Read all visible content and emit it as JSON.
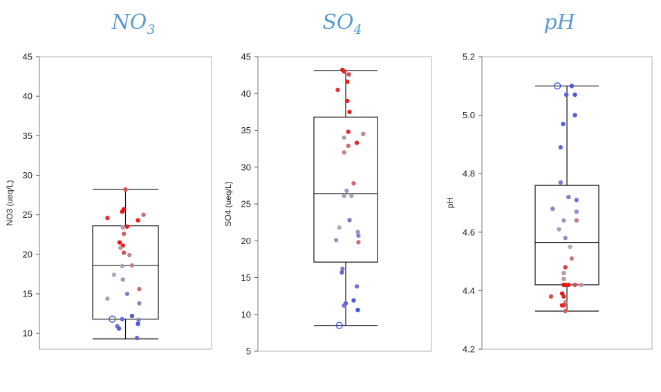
{
  "chart_data": [
    {
      "type": "box",
      "title": "NO3",
      "title_main": "NO",
      "title_sub": "3",
      "ylabel": "NO3 (ueq/L)",
      "ylim": [
        8,
        45
      ],
      "yticks": [
        10,
        15,
        20,
        25,
        30,
        35,
        40,
        45
      ],
      "tick_labels": [
        "10",
        "15",
        "20",
        "25",
        "30",
        "35",
        "40",
        "45"
      ],
      "box": {
        "whisker_low": 9.3,
        "q1": 11.8,
        "median": 18.6,
        "q3": 23.6,
        "whisker_high": 28.2
      },
      "points": [
        {
          "y": 28.2,
          "j": 0.0,
          "c": 0.78
        },
        {
          "y": 25.7,
          "j": -0.05,
          "c": 1.0
        },
        {
          "y": 25.4,
          "j": -0.1,
          "c": 1.0
        },
        {
          "y": 25.0,
          "j": 0.55,
          "c": 0.7
        },
        {
          "y": 24.6,
          "j": -0.55,
          "c": 0.88
        },
        {
          "y": 24.3,
          "j": 0.38,
          "c": 0.95
        },
        {
          "y": 23.5,
          "j": 0.05,
          "c": 0.95
        },
        {
          "y": 23.4,
          "j": -0.08,
          "c": 0.55
        },
        {
          "y": 22.6,
          "j": -0.05,
          "c": 0.75
        },
        {
          "y": 21.5,
          "j": -0.18,
          "c": 1.0
        },
        {
          "y": 21.1,
          "j": -0.08,
          "c": 0.95
        },
        {
          "y": 20.8,
          "j": -0.15,
          "c": 0.55
        },
        {
          "y": 20.2,
          "j": -0.05,
          "c": 0.8
        },
        {
          "y": 19.9,
          "j": 0.12,
          "c": 0.62
        },
        {
          "y": 18.6,
          "j": 0.2,
          "c": 0.62
        },
        {
          "y": 18.5,
          "j": -0.1,
          "c": 0.45
        },
        {
          "y": 17.4,
          "j": -0.35,
          "c": 0.5
        },
        {
          "y": 16.8,
          "j": -0.08,
          "c": 0.4
        },
        {
          "y": 15.6,
          "j": 0.42,
          "c": 0.7
        },
        {
          "y": 15.0,
          "j": 0.05,
          "c": 0.3
        },
        {
          "y": 14.4,
          "j": -0.55,
          "c": 0.45
        },
        {
          "y": 13.8,
          "j": 0.42,
          "c": 0.32
        },
        {
          "y": 12.2,
          "j": 0.2,
          "c": 0.08
        },
        {
          "y": 11.8,
          "j": -0.1,
          "c": 0.15
        },
        {
          "y": 11.7,
          "j": 0.4,
          "c": 0.3
        },
        {
          "y": 11.2,
          "j": 0.38,
          "c": 0.05
        },
        {
          "y": 10.9,
          "j": -0.25,
          "c": 0.2
        },
        {
          "y": 10.6,
          "j": -0.2,
          "c": 0.1
        },
        {
          "y": 9.4,
          "j": 0.35,
          "c": 0.15
        }
      ],
      "open_points": [
        {
          "y": 11.8,
          "j": -0.4
        }
      ]
    },
    {
      "type": "box",
      "title": "SO4",
      "title_main": "SO",
      "title_sub": "4",
      "ylabel": "SO4 (ueq/L)",
      "ylim": [
        5,
        45
      ],
      "yticks": [
        5,
        10,
        15,
        20,
        25,
        30,
        35,
        40,
        45
      ],
      "tick_labels": [
        "5",
        "10",
        "15",
        "20",
        "25",
        "30",
        "35",
        "40",
        "45"
      ],
      "box": {
        "whisker_low": 8.5,
        "q1": 17.1,
        "median": 26.4,
        "q3": 36.8,
        "whisker_high": 43.1
      },
      "points": [
        {
          "y": 43.2,
          "j": -0.1,
          "c": 1.0
        },
        {
          "y": 43.0,
          "j": -0.05,
          "c": 0.95
        },
        {
          "y": 42.6,
          "j": 0.1,
          "c": 0.8
        },
        {
          "y": 41.6,
          "j": 0.05,
          "c": 0.95
        },
        {
          "y": 40.5,
          "j": -0.25,
          "c": 0.88
        },
        {
          "y": 39.0,
          "j": 0.05,
          "c": 0.95
        },
        {
          "y": 37.5,
          "j": 0.12,
          "c": 0.95
        },
        {
          "y": 34.8,
          "j": 0.08,
          "c": 0.9
        },
        {
          "y": 34.5,
          "j": 0.55,
          "c": 0.62
        },
        {
          "y": 34.0,
          "j": -0.05,
          "c": 0.45
        },
        {
          "y": 33.3,
          "j": 0.35,
          "c": 0.92
        },
        {
          "y": 32.9,
          "j": 0.08,
          "c": 0.7
        },
        {
          "y": 32.0,
          "j": -0.05,
          "c": 0.62
        },
        {
          "y": 27.8,
          "j": 0.25,
          "c": 0.72
        },
        {
          "y": 26.8,
          "j": 0.03,
          "c": 0.4
        },
        {
          "y": 26.1,
          "j": 0.18,
          "c": 0.45
        },
        {
          "y": 26.1,
          "j": -0.05,
          "c": 0.45
        },
        {
          "y": 22.8,
          "j": 0.12,
          "c": 0.25
        },
        {
          "y": 21.8,
          "j": -0.2,
          "c": 0.5
        },
        {
          "y": 21.2,
          "j": 0.38,
          "c": 0.4
        },
        {
          "y": 20.7,
          "j": 0.4,
          "c": 0.3
        },
        {
          "y": 20.1,
          "j": -0.3,
          "c": 0.4
        },
        {
          "y": 19.8,
          "j": 0.4,
          "c": 0.7
        },
        {
          "y": 16.2,
          "j": -0.1,
          "c": 0.25
        },
        {
          "y": 15.7,
          "j": -0.12,
          "c": 0.15
        },
        {
          "y": 13.8,
          "j": 0.35,
          "c": 0.2
        },
        {
          "y": 11.9,
          "j": 0.25,
          "c": 0.08
        },
        {
          "y": 11.5,
          "j": 0.0,
          "c": 0.1
        },
        {
          "y": 11.2,
          "j": -0.05,
          "c": 0.2
        },
        {
          "y": 10.6,
          "j": 0.38,
          "c": 0.05
        }
      ],
      "open_points": [
        {
          "y": 8.5,
          "j": -0.2
        }
      ]
    },
    {
      "type": "box",
      "title": "pH",
      "title_main": "pH",
      "title_sub": "",
      "ylabel": "pH",
      "ylim": [
        4.2,
        5.2
      ],
      "yticks": [
        4.2,
        4.4,
        4.6,
        4.8,
        5.0,
        5.2
      ],
      "tick_labels": [
        "4.2",
        "4.4",
        "4.6",
        "4.8",
        "5.0",
        "5.2"
      ],
      "box": {
        "whisker_low": 4.33,
        "q1": 4.42,
        "median": 4.565,
        "q3": 4.76,
        "whisker_high": 5.1
      },
      "points": [
        {
          "y": 5.1,
          "j": 0.15,
          "c": 0.05
        },
        {
          "y": 5.07,
          "j": -0.02,
          "c": 0.1
        },
        {
          "y": 5.07,
          "j": 0.25,
          "c": 0.05
        },
        {
          "y": 5.0,
          "j": 0.25,
          "c": 0.1
        },
        {
          "y": 4.97,
          "j": -0.12,
          "c": 0.1
        },
        {
          "y": 4.89,
          "j": -0.2,
          "c": 0.15
        },
        {
          "y": 4.77,
          "j": -0.2,
          "c": 0.25
        },
        {
          "y": 4.72,
          "j": 0.05,
          "c": 0.25
        },
        {
          "y": 4.71,
          "j": 0.3,
          "c": 0.2
        },
        {
          "y": 4.68,
          "j": -0.45,
          "c": 0.3
        },
        {
          "y": 4.67,
          "j": 0.3,
          "c": 0.35
        },
        {
          "y": 4.64,
          "j": -0.1,
          "c": 0.4
        },
        {
          "y": 4.64,
          "j": 0.3,
          "c": 0.65
        },
        {
          "y": 4.61,
          "j": -0.25,
          "c": 0.45
        },
        {
          "y": 4.58,
          "j": -0.05,
          "c": 0.35
        },
        {
          "y": 4.55,
          "j": 0.1,
          "c": 0.5
        },
        {
          "y": 4.51,
          "j": 0.15,
          "c": 0.65
        },
        {
          "y": 4.48,
          "j": -0.05,
          "c": 0.85
        },
        {
          "y": 4.46,
          "j": -0.1,
          "c": 0.55
        },
        {
          "y": 4.44,
          "j": -0.1,
          "c": 0.55
        },
        {
          "y": 4.42,
          "j": -0.1,
          "c": 1.0
        },
        {
          "y": 4.42,
          "j": -0.05,
          "c": 1.0
        },
        {
          "y": 4.42,
          "j": 0.05,
          "c": 0.95
        },
        {
          "y": 4.42,
          "j": 0.25,
          "c": 0.8
        },
        {
          "y": 4.42,
          "j": 0.45,
          "c": 0.55
        },
        {
          "y": 4.39,
          "j": -0.15,
          "c": 1.0
        },
        {
          "y": 4.38,
          "j": -0.1,
          "c": 0.95
        },
        {
          "y": 4.38,
          "j": -0.5,
          "c": 0.8
        },
        {
          "y": 4.36,
          "j": -0.05,
          "c": 0.65
        },
        {
          "y": 4.35,
          "j": -0.15,
          "c": 1.0
        },
        {
          "y": 4.35,
          "j": -0.1,
          "c": 0.9
        },
        {
          "y": 4.33,
          "j": -0.05,
          "c": 0.75
        }
      ],
      "open_points": [
        {
          "y": 5.1,
          "j": -0.3
        }
      ]
    }
  ],
  "colors": {
    "title": "#5b9bd5",
    "low": "#3b4ce6",
    "mid": "#b5a9b4",
    "high": "#ee1111",
    "open_point": "#3b4ce6"
  }
}
